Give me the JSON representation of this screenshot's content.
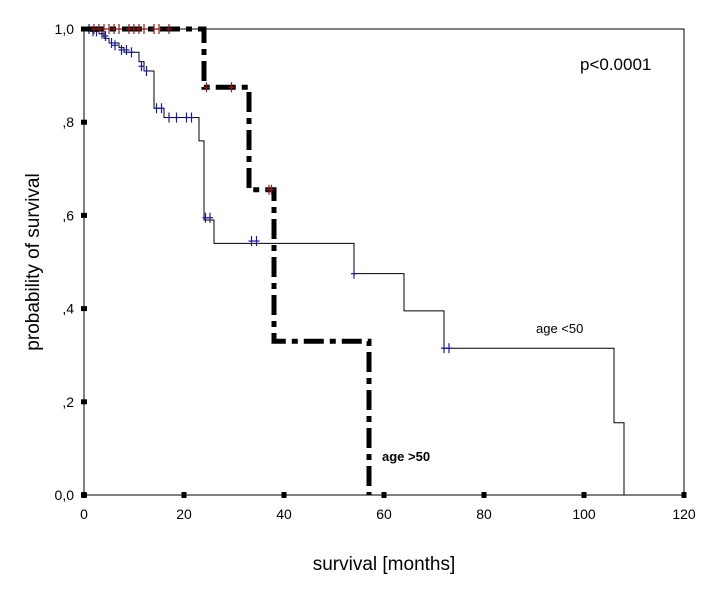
{
  "chart_data": {
    "type": "line",
    "xlabel": "survival [months]",
    "ylabel": "probability of survival",
    "xlim": [
      0,
      120
    ],
    "ylim": [
      0,
      1
    ],
    "x_ticks": [
      0,
      20,
      40,
      60,
      80,
      100,
      120
    ],
    "x_tick_labels": [
      "0",
      "20",
      "40",
      "60",
      "80",
      "100",
      "120"
    ],
    "y_ticks": [
      0,
      0.2,
      0.4,
      0.6,
      0.8,
      1.0
    ],
    "y_tick_labels": [
      "0,0",
      ",2",
      ",4",
      ",6",
      ",8",
      "1,0"
    ],
    "grid": false,
    "legend": "none",
    "annotations": {
      "p_value": "p<0.0001",
      "label_under50": "age <50",
      "label_over50": "age >50"
    },
    "series": [
      {
        "label": "age <50",
        "style": "thin-solid",
        "color": "#000000",
        "censor_color": "#1a1a8c",
        "steps": [
          [
            0,
            1.0
          ],
          [
            3,
            0.99
          ],
          [
            4,
            0.98
          ],
          [
            5,
            0.97
          ],
          [
            7,
            0.96
          ],
          [
            8,
            0.95
          ],
          [
            11,
            0.93
          ],
          [
            12,
            0.91
          ],
          [
            14,
            0.83
          ],
          [
            16,
            0.81
          ],
          [
            23,
            0.76
          ],
          [
            24,
            0.59
          ],
          [
            26,
            0.54
          ],
          [
            54,
            0.475
          ],
          [
            64,
            0.395
          ],
          [
            72,
            0.315
          ],
          [
            106,
            0.155
          ],
          [
            108,
            0.0
          ]
        ],
        "censored": [
          [
            1,
            1.0
          ],
          [
            1.8,
            0.995
          ],
          [
            2.5,
            0.995
          ],
          [
            3.6,
            0.99
          ],
          [
            4.3,
            0.985
          ],
          [
            5.5,
            0.97
          ],
          [
            6.2,
            0.965
          ],
          [
            7.5,
            0.955
          ],
          [
            8.5,
            0.955
          ],
          [
            9.5,
            0.95
          ],
          [
            11.5,
            0.92
          ],
          [
            12.5,
            0.91
          ],
          [
            14.5,
            0.83
          ],
          [
            15.5,
            0.83
          ],
          [
            17,
            0.81
          ],
          [
            18.5,
            0.81
          ],
          [
            20.5,
            0.81
          ],
          [
            21.5,
            0.81
          ],
          [
            24.3,
            0.595
          ],
          [
            25.2,
            0.595
          ],
          [
            33.5,
            0.545
          ],
          [
            34.5,
            0.545
          ],
          [
            54,
            0.475
          ],
          [
            72,
            0.315
          ],
          [
            73,
            0.315
          ]
        ]
      },
      {
        "label": "age >50",
        "style": "thick-dashdot",
        "color": "#000000",
        "censor_color": "#8b1a1a",
        "steps": [
          [
            0,
            1.0
          ],
          [
            24,
            0.875
          ],
          [
            33,
            0.655
          ],
          [
            38,
            0.33
          ],
          [
            57,
            0.0
          ]
        ],
        "censored": [
          [
            2,
            1.0
          ],
          [
            3,
            1.0
          ],
          [
            4,
            1.0
          ],
          [
            5,
            1.0
          ],
          [
            6,
            1.0
          ],
          [
            7,
            1.0
          ],
          [
            9,
            1.0
          ],
          [
            10,
            1.0
          ],
          [
            11,
            1.0
          ],
          [
            12,
            1.0
          ],
          [
            14,
            1.0
          ],
          [
            15,
            1.0
          ],
          [
            17,
            1.0
          ],
          [
            24.5,
            0.875
          ],
          [
            29.5,
            0.875
          ],
          [
            37,
            0.655
          ],
          [
            37.5,
            0.655
          ]
        ]
      }
    ]
  }
}
